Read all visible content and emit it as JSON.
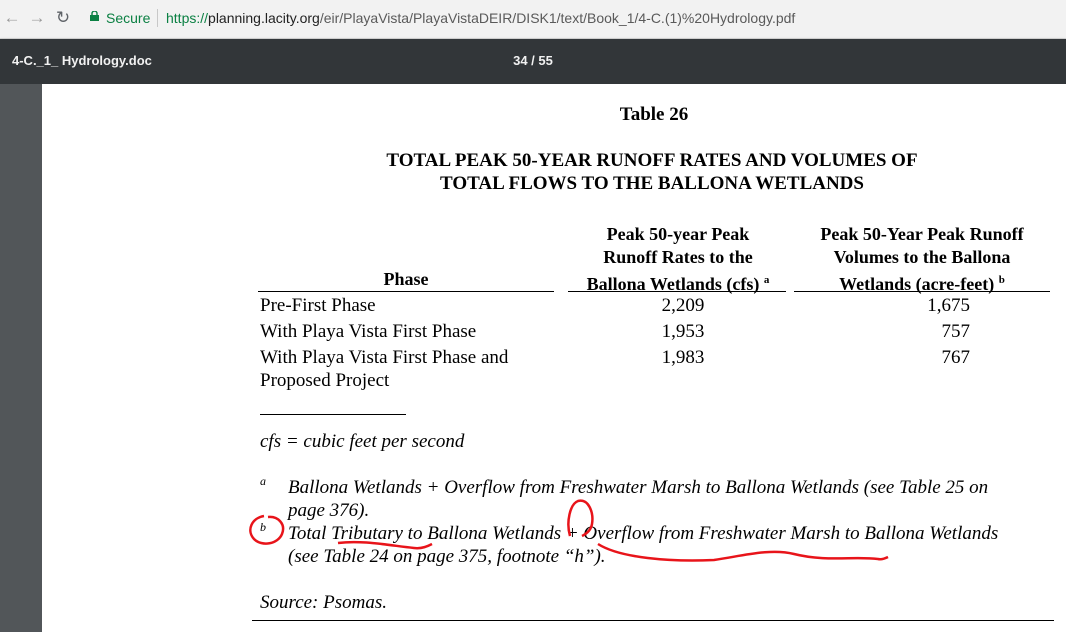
{
  "browser": {
    "secure_label": "Secure",
    "url_scheme": "https://",
    "url_host": "planning.lacity.org",
    "url_path": "/eir/PlayaVista/PlayaVistaDEIR/DISK1/text/Book_1/4-C.(1)%20Hydrology.pdf"
  },
  "pdf_toolbar": {
    "title": "4-C._1_ Hydrology.doc",
    "page_counter": "34  /  55"
  },
  "document": {
    "table_title": "Table 26",
    "heading_line1": "TOTAL PEAK 50-YEAR RUNOFF RATES AND VOLUMES OF",
    "heading_line2": "TOTAL FLOWS TO THE BALLONA WETLANDS",
    "columns": {
      "phase": "Phase",
      "rates_line1": "Peak 50-year Peak",
      "rates_line2": "Runoff Rates to the",
      "rates_line3": "Ballona Wetlands (cfs)",
      "rates_sup": "a",
      "volumes_line1": "Peak 50-Year Peak Runoff",
      "volumes_line2": "Volumes to the Ballona",
      "volumes_line3": "Wetlands (acre-feet)",
      "volumes_sup": "b"
    },
    "rows": [
      {
        "phase": "Pre-First Phase",
        "rates": "2,209",
        "volumes": "1,675"
      },
      {
        "phase": "With Playa Vista First Phase",
        "rates": "1,953",
        "volumes": "757"
      },
      {
        "phase_line1": "With Playa Vista First Phase and",
        "phase_line2": "Proposed Project",
        "rates": "1,983",
        "volumes": "767"
      }
    ],
    "cfs_note": "cfs =  cubic feet per second",
    "footnote_a_mark": "a",
    "footnote_a_line1": "Ballona Wetlands + Overflow from Freshwater Marsh to Ballona Wetlands (see Table 25 on",
    "footnote_a_line2": "page 376).",
    "footnote_b_mark": "b",
    "footnote_b_line1": "Total Tributary to Ballona Wetlands + Overflow from Freshwater Marsh to Ballona Wetlands",
    "footnote_b_line2": "(see Table 24 on page 375, footnote “h”).",
    "source": "Source:  Psomas."
  },
  "colors": {
    "secure_green": "#0b8043",
    "toolbar": "#323639",
    "viewer_bg": "#525659",
    "annotation_red": "#e8141a"
  }
}
